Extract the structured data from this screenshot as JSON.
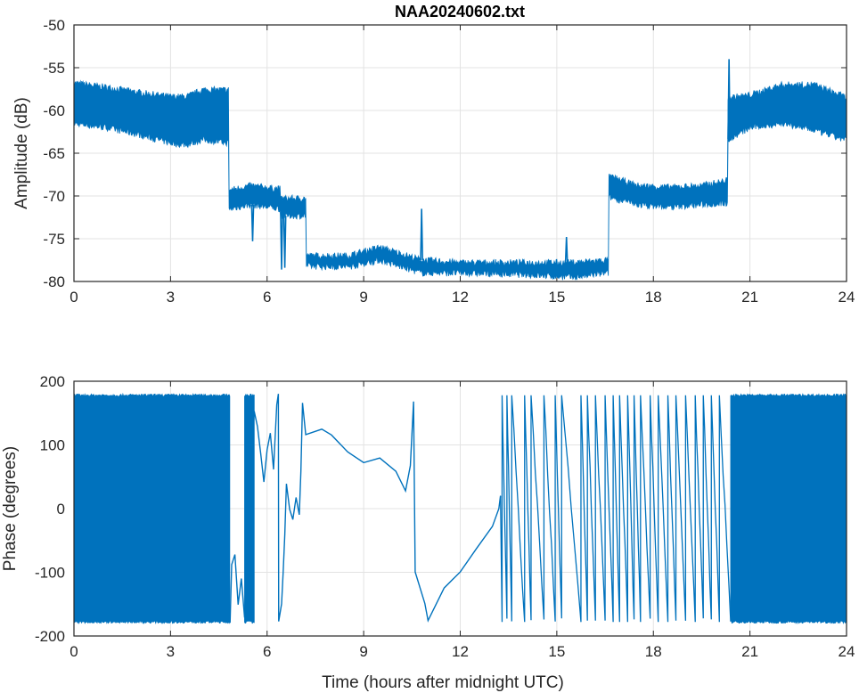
{
  "chart_data": [
    {
      "type": "line",
      "title": "NAA20240602.txt",
      "xlabel": "",
      "ylabel": "Amplitude (dB)",
      "xlim": [
        0,
        24
      ],
      "ylim": [
        -80,
        -50
      ],
      "xticks": [
        "0",
        "3",
        "6",
        "9",
        "12",
        "15",
        "18",
        "21",
        "24"
      ],
      "yticks": [
        "-50",
        "-55",
        "-60",
        "-65",
        "-70",
        "-75",
        "-80"
      ],
      "grid": true,
      "color": "#0072BD",
      "envelope": [
        [
          0,
          -61.5,
          -56.8
        ],
        [
          1,
          -62,
          -57.3
        ],
        [
          2,
          -62.8,
          -57.9
        ],
        [
          3,
          -63.8,
          -58.4
        ],
        [
          3.5,
          -64,
          -58.4
        ],
        [
          4,
          -63.4,
          -57.6
        ],
        [
          4.8,
          -63.8,
          -57.6
        ],
        [
          4.85,
          -71.5,
          -69.3
        ],
        [
          5.5,
          -71,
          -68.8
        ],
        [
          6.4,
          -71.5,
          -69.2
        ],
        [
          6.5,
          -72.3,
          -70.3
        ],
        [
          7.2,
          -72.3,
          -70.3
        ],
        [
          7.25,
          -78.2,
          -77
        ],
        [
          8.5,
          -78.3,
          -77
        ],
        [
          9.5,
          -77.5,
          -76
        ],
        [
          10.8,
          -79,
          -77.5
        ],
        [
          12,
          -79,
          -77.8
        ],
        [
          14,
          -79.2,
          -77.8
        ],
        [
          15.5,
          -79.5,
          -77.8
        ],
        [
          16.6,
          -79,
          -77.5
        ],
        [
          16.7,
          -70.2,
          -67.8
        ],
        [
          17.5,
          -71,
          -68.8
        ],
        [
          18.5,
          -71.3,
          -69
        ],
        [
          19.5,
          -71,
          -68.8
        ],
        [
          20.3,
          -70.8,
          -68.2
        ],
        [
          20.4,
          -63.3,
          -58.5
        ],
        [
          21,
          -62,
          -58.2
        ],
        [
          22,
          -61.5,
          -57
        ],
        [
          23,
          -62.3,
          -57
        ],
        [
          24,
          -63.5,
          -58.5
        ]
      ],
      "spikes": [
        [
          5.55,
          -75.3
        ],
        [
          6.45,
          -78.6
        ],
        [
          6.55,
          -78.4
        ],
        [
          10.8,
          -71.5
        ],
        [
          15.3,
          -74.8
        ],
        [
          20.35,
          -54
        ]
      ]
    },
    {
      "type": "line",
      "title": "",
      "xlabel": "Time (hours after midnight UTC)",
      "ylabel": "Phase (degrees)",
      "xlim": [
        0,
        24
      ],
      "ylim": [
        -200,
        200
      ],
      "xticks": [
        "0",
        "3",
        "6",
        "9",
        "12",
        "15",
        "18",
        "21",
        "24"
      ],
      "yticks": [
        "200",
        "100",
        "0",
        "-100",
        "-200"
      ],
      "grid": true,
      "color": "#0072BD",
      "noise_bands": [
        [
          0,
          4.85
        ],
        [
          5.3,
          5.6
        ],
        [
          20.4,
          24
        ]
      ],
      "trace": [
        [
          4.85,
          -180
        ],
        [
          4.9,
          -90
        ],
        [
          5.0,
          -75
        ],
        [
          5.1,
          -150
        ],
        [
          5.2,
          -110
        ],
        [
          5.3,
          -170
        ],
        [
          5.6,
          150
        ],
        [
          5.7,
          130
        ],
        [
          5.8,
          90
        ],
        [
          5.9,
          40
        ],
        [
          6.0,
          90
        ],
        [
          6.1,
          120
        ],
        [
          6.2,
          60
        ],
        [
          6.3,
          160
        ],
        [
          6.35,
          180
        ],
        [
          6.36,
          -180
        ],
        [
          6.45,
          -150
        ],
        [
          6.5,
          -100
        ],
        [
          6.55,
          -40
        ],
        [
          6.6,
          40
        ],
        [
          6.7,
          0
        ],
        [
          6.8,
          -20
        ],
        [
          6.9,
          20
        ],
        [
          7.0,
          -10
        ],
        [
          7.05,
          60
        ],
        [
          7.1,
          165
        ],
        [
          7.2,
          115
        ],
        [
          7.7,
          125
        ],
        [
          8.0,
          115
        ],
        [
          8.5,
          90
        ],
        [
          9.0,
          75
        ],
        [
          9.5,
          80
        ],
        [
          10.0,
          60
        ],
        [
          10.3,
          30
        ],
        [
          10.45,
          70
        ],
        [
          10.55,
          170
        ],
        [
          10.6,
          -100
        ],
        [
          10.9,
          -150
        ],
        [
          11.0,
          -175
        ],
        [
          11.5,
          -125
        ],
        [
          12.0,
          -100
        ],
        [
          12.5,
          -60
        ],
        [
          13.0,
          -30
        ],
        [
          13.2,
          0
        ],
        [
          13.25,
          20
        ]
      ],
      "wraps": [
        13.3,
        13.45,
        13.6,
        14.0,
        14.2,
        14.6,
        14.95,
        15.15,
        15.75,
        15.95,
        16.2,
        16.5,
        16.75,
        16.95,
        17.2,
        17.4,
        17.6,
        17.9,
        18.15,
        18.45,
        18.7,
        19.0,
        19.3,
        19.55,
        19.8,
        20.05,
        20.4
      ]
    }
  ]
}
